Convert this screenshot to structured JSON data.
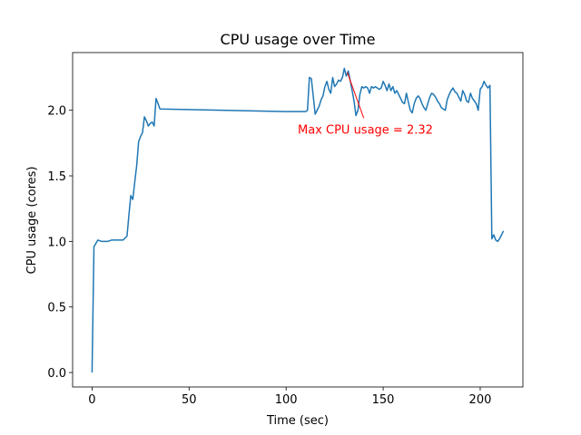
{
  "chart_data": {
    "type": "line",
    "title": "CPU usage over Time",
    "xlabel": "Time (sec)",
    "ylabel": "CPU usage (cores)",
    "xlim": [
      -10,
      222
    ],
    "ylim": [
      -0.11,
      2.44
    ],
    "xticks": [
      0,
      50,
      100,
      150,
      200
    ],
    "yticks": [
      0.0,
      0.5,
      1.0,
      1.5,
      2.0
    ],
    "xtick_labels": [
      "0",
      "50",
      "100",
      "150",
      "200"
    ],
    "ytick_labels": [
      "0.0",
      "0.5",
      "1.0",
      "1.5",
      "2.0"
    ],
    "grid": false,
    "series": [
      {
        "color": "#1f77b4",
        "x": [
          0,
          1,
          3,
          5,
          8,
          10,
          13,
          16,
          18,
          19,
          20,
          21,
          22,
          23,
          24,
          25,
          26,
          27,
          28,
          29,
          30,
          31,
          32,
          33,
          34,
          35,
          100,
          110,
          111,
          112,
          113,
          115,
          117,
          118,
          119,
          120,
          121,
          122,
          123,
          124,
          125,
          126,
          127,
          128,
          129,
          130,
          131,
          132,
          133,
          134,
          135,
          136,
          137,
          138,
          139,
          140,
          141,
          142,
          143,
          144,
          145,
          146,
          147,
          148,
          149,
          150,
          151,
          152,
          153,
          154,
          155,
          156,
          157,
          158,
          159,
          160,
          161,
          162,
          163,
          164,
          165,
          166,
          167,
          168,
          169,
          170,
          171,
          172,
          173,
          174,
          175,
          176,
          177,
          178,
          179,
          180,
          181,
          182,
          183,
          184,
          185,
          186,
          187,
          188,
          189,
          190,
          191,
          192,
          193,
          194,
          195,
          196,
          197,
          198,
          199,
          200,
          201,
          202,
          203,
          204,
          205,
          206,
          207,
          208,
          209,
          210,
          211,
          212
        ],
        "y": [
          0.0,
          0.96,
          1.01,
          1.0,
          1.0,
          1.01,
          1.01,
          1.01,
          1.04,
          1.2,
          1.35,
          1.32,
          1.45,
          1.58,
          1.76,
          1.8,
          1.83,
          1.95,
          1.92,
          1.88,
          1.9,
          1.91,
          1.88,
          2.09,
          2.05,
          2.01,
          1.99,
          1.99,
          2.0,
          2.25,
          2.24,
          1.97,
          2.03,
          2.08,
          2.11,
          2.18,
          2.22,
          2.16,
          2.13,
          2.25,
          2.18,
          2.2,
          2.23,
          2.22,
          2.25,
          2.32,
          2.26,
          2.3,
          2.23,
          2.15,
          2.07,
          1.96,
          2.0,
          2.12,
          2.18,
          2.17,
          2.18,
          2.17,
          2.13,
          2.18,
          2.17,
          2.18,
          2.17,
          2.16,
          2.17,
          2.22,
          2.19,
          2.15,
          2.2,
          2.15,
          2.18,
          2.13,
          2.15,
          2.12,
          2.09,
          2.06,
          2.05,
          2.13,
          2.06,
          2.0,
          1.98,
          2.05,
          2.09,
          2.11,
          2.09,
          2.05,
          2.02,
          2.0,
          2.05,
          2.1,
          2.13,
          2.12,
          2.1,
          2.07,
          2.05,
          2.02,
          2.01,
          2.0,
          2.08,
          2.12,
          2.15,
          2.17,
          2.14,
          2.13,
          2.1,
          2.07,
          2.15,
          2.12,
          2.07,
          2.06,
          2.13,
          2.09,
          2.07,
          2.05,
          2.0,
          2.16,
          2.18,
          2.22,
          2.19,
          2.17,
          2.19,
          1.02,
          1.05,
          1.01,
          1.0,
          1.02,
          1.05,
          1.08
        ]
      }
    ],
    "annotation": {
      "text": "Max CPU usage = 2.32",
      "color": "#ff0000",
      "x": 130,
      "y": 2.32,
      "text_x": 106,
      "text_y": 1.82
    }
  }
}
